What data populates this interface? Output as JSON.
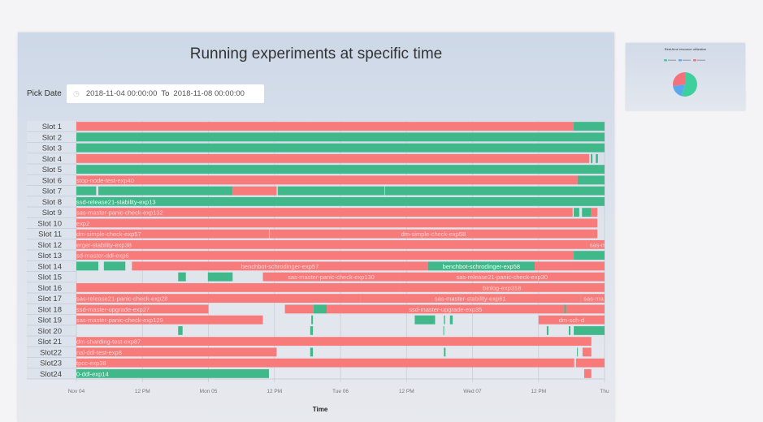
{
  "panel": {
    "title": "Running experiments at specific time",
    "pick_date_label": "Pick Date",
    "date_from": "2018-11-04 00:00:00",
    "date_to_label": "To",
    "date_to": "2018-11-08 00:00:00",
    "clock_icon": "clock-icon"
  },
  "thumbnail": {
    "title": "Real-time resource utilization",
    "slices": [
      {
        "value": 55,
        "color": "#3dcf9e"
      },
      {
        "value": 18,
        "color": "#5aa9f0"
      },
      {
        "value": 27,
        "color": "#f4707a"
      }
    ]
  },
  "chart_data": {
    "type": "gantt",
    "title": "Running experiments at specific time",
    "xlabel": "Time",
    "xlim": [
      "2018-11-04 00:00",
      "2018-11-08 00:00"
    ],
    "x_ticks": [
      {
        "t": "2018-11-04 00:00",
        "label": "Nov 04"
      },
      {
        "t": "2018-11-04 12:00",
        "label": "12 PM"
      },
      {
        "t": "2018-11-05 00:00",
        "label": "Mon 05"
      },
      {
        "t": "2018-11-05 12:00",
        "label": "12 PM"
      },
      {
        "t": "2018-11-06 00:00",
        "label": "Tue 06"
      },
      {
        "t": "2018-11-06 12:00",
        "label": "12 PM"
      },
      {
        "t": "2018-11-07 00:00",
        "label": "Wed 07"
      },
      {
        "t": "2018-11-07 12:00",
        "label": "12 PM"
      },
      {
        "t": "2018-11-08 00:00",
        "label": "Thu"
      }
    ],
    "colors": {
      "red": "#f77b7b",
      "green": "#40b88a"
    },
    "slots": [
      {
        "name": "Slot 1",
        "segments": [
          [
            "2018-11-03 20:00",
            "2018-11-07 18:24",
            "red",
            ""
          ],
          [
            "2018-11-07 18:24",
            "2018-11-08 04:00",
            "green",
            ""
          ]
        ]
      },
      {
        "name": "Slot 2",
        "segments": [
          [
            "2018-11-03 20:00",
            "2018-11-08 04:00",
            "green",
            ""
          ]
        ]
      },
      {
        "name": "Slot 3",
        "segments": [
          [
            "2018-11-03 20:00",
            "2018-11-08 04:00",
            "green",
            ""
          ]
        ]
      },
      {
        "name": "Slot 4",
        "segments": [
          [
            "2018-11-03 20:00",
            "2018-11-07 21:12",
            "red",
            ""
          ],
          [
            "2018-11-07 21:30",
            "2018-11-07 21:48",
            "green",
            ""
          ],
          [
            "2018-11-07 22:24",
            "2018-11-07 22:48",
            "green",
            ""
          ]
        ]
      },
      {
        "name": "Slot 5",
        "segments": [
          [
            "2018-11-03 20:00",
            "2018-11-08 04:00",
            "green",
            ""
          ]
        ]
      },
      {
        "name": "Slot 6",
        "segments": [
          [
            "2018-11-03 20:00",
            "2018-11-07 19:06",
            "red",
            "stop-node-test-exp40"
          ],
          [
            "2018-11-07 19:06",
            "2018-11-08 04:00",
            "green",
            ""
          ]
        ]
      },
      {
        "name": "Slot 7",
        "segments": [
          [
            "2018-11-03 20:00",
            "2018-11-04 03:36",
            "green",
            ""
          ],
          [
            "2018-11-04 04:00",
            "2018-11-05 04:24",
            "green",
            ""
          ],
          [
            "2018-11-05 04:24",
            "2018-11-05 12:24",
            "red",
            ""
          ],
          [
            "2018-11-05 12:36",
            "2018-11-06 08:00",
            "green",
            ""
          ],
          [
            "2018-11-06 08:06",
            "2018-11-08 04:00",
            "green",
            ""
          ]
        ]
      },
      {
        "name": "Slot 8",
        "segments": [
          [
            "2018-11-03 20:00",
            "2018-11-08 04:00",
            "green",
            "ssd-release21-stability-exp13"
          ]
        ]
      },
      {
        "name": "Slot 9",
        "segments": [
          [
            "2018-11-03 20:00",
            "2018-11-07 18:12",
            "red",
            "sas-master-panic-check-exp132"
          ],
          [
            "2018-11-07 18:24",
            "2018-11-07 19:24",
            "green",
            ""
          ],
          [
            "2018-11-07 19:54",
            "2018-11-07 21:36",
            "green",
            ""
          ],
          [
            "2018-11-07 21:36",
            "2018-11-07 22:42",
            "red",
            ""
          ]
        ]
      },
      {
        "name": "Slot 10",
        "segments": [
          [
            "2018-11-03 20:00",
            "2018-11-07 22:42",
            "red",
            "exp2"
          ]
        ]
      },
      {
        "name": "Slot 11",
        "segments": [
          [
            "2018-11-03 20:00",
            "2018-11-05 11:00",
            "red",
            "dm-simple-check-exp57"
          ],
          [
            "2018-11-05 11:06",
            "2018-11-07 22:42",
            "red",
            "dm-simple-check-exp58"
          ]
        ]
      },
      {
        "name": "Slot 12",
        "segments": [
          [
            "2018-11-03 20:00",
            "2018-11-07 20:42",
            "red",
            "erger-stability-exp38"
          ],
          [
            "2018-11-07 20:42",
            "2018-11-08 04:00",
            "red",
            "sas-m"
          ]
        ]
      },
      {
        "name": "Slot 13",
        "segments": [
          [
            "2018-11-03 20:00",
            "2018-11-07 18:24",
            "red",
            "sd-master-ddl-exp6"
          ],
          [
            "2018-11-07 18:24",
            "2018-11-08 04:00",
            "green",
            ""
          ]
        ]
      },
      {
        "name": "Slot 14",
        "segments": [
          [
            "2018-11-03 20:00",
            "2018-11-04 04:00",
            "green",
            ""
          ],
          [
            "2018-11-04 05:00",
            "2018-11-04 08:54",
            "green",
            ""
          ],
          [
            "2018-11-04 10:06",
            "2018-11-06 15:54",
            "red",
            "benchbot-schrodinger-exp57"
          ],
          [
            "2018-11-06 15:54",
            "2018-11-07 11:18",
            "green",
            "benchbot-schrodinger-exp58"
          ],
          [
            "2018-11-07 11:18",
            "2018-11-08 04:00",
            "red",
            ""
          ]
        ]
      },
      {
        "name": "Slot 15",
        "segments": [
          [
            "2018-11-04 18:30",
            "2018-11-04 19:54",
            "green",
            ""
          ],
          [
            "2018-11-04 23:54",
            "2018-11-05 04:24",
            "green",
            ""
          ],
          [
            "2018-11-05 09:54",
            "2018-11-06 10:42",
            "red",
            "sas-master-panic-check-exp130"
          ],
          [
            "2018-11-06 10:42",
            "2018-11-08 04:00",
            "red",
            "sas-release21-panic-check-exp30"
          ]
        ]
      },
      {
        "name": "Slot 16",
        "segments": [
          [
            "2018-11-03 20:00",
            "2018-11-06 10:42",
            "red",
            ""
          ],
          [
            "2018-11-06 10:42",
            "2018-11-08 04:00",
            "red",
            "binlog-exp318"
          ]
        ]
      },
      {
        "name": "Slot 17",
        "segments": [
          [
            "2018-11-03 20:00",
            "2018-11-06 03:36",
            "red",
            "sas-release21-panic-check-exp28"
          ],
          [
            "2018-11-06 03:36",
            "2018-11-07 19:36",
            "red",
            "sas-master-stability-exp61"
          ],
          [
            "2018-11-07 19:36",
            "2018-11-08 04:00",
            "red",
            "sas-ma"
          ]
        ]
      },
      {
        "name": "Slot 18",
        "segments": [
          [
            "2018-11-03 20:00",
            "2018-11-05 00:00",
            "red",
            "ssd-master-upgrade-exp27"
          ],
          [
            "2018-11-05 13:54",
            "2018-11-05 19:06",
            "red",
            ""
          ],
          [
            "2018-11-05 19:06",
            "2018-11-05 21:30",
            "green",
            ""
          ],
          [
            "2018-11-05 21:30",
            "2018-11-07 16:42",
            "red",
            "ssd-master-upgrade-exp35"
          ],
          [
            "2018-11-07 16:42",
            "2018-11-07 17:00",
            "green",
            ""
          ],
          [
            "2018-11-07 17:00",
            "2018-11-08 04:00",
            "red",
            ""
          ]
        ]
      },
      {
        "name": "Slot 19",
        "segments": [
          [
            "2018-11-03 20:00",
            "2018-11-05 09:54",
            "red",
            "sas-master-panic-check-exp129"
          ],
          [
            "2018-11-05 18:42",
            "2018-11-05 19:00",
            "green",
            ""
          ],
          [
            "2018-11-06 13:30",
            "2018-11-06 17:12",
            "green",
            ""
          ],
          [
            "2018-11-06 18:48",
            "2018-11-06 19:00",
            "green",
            ""
          ],
          [
            "2018-11-06 19:54",
            "2018-11-06 20:24",
            "green",
            ""
          ],
          [
            "2018-11-07 12:00",
            "2018-11-08 04:00",
            "red",
            "dm-sch-d"
          ]
        ]
      },
      {
        "name": "Slot 20",
        "segments": [
          [
            "2018-11-04 18:30",
            "2018-11-04 19:18",
            "green",
            ""
          ],
          [
            "2018-11-05 18:30",
            "2018-11-05 19:00",
            "green",
            ""
          ],
          [
            "2018-11-06 18:42",
            "2018-11-06 18:48",
            "green",
            ""
          ],
          [
            "2018-11-07 13:30",
            "2018-11-07 13:48",
            "green",
            ""
          ],
          [
            "2018-11-07 17:30",
            "2018-11-07 17:48",
            "green",
            ""
          ],
          [
            "2018-11-07 18:24",
            "2018-11-08 04:00",
            "green",
            ""
          ]
        ]
      },
      {
        "name": "Slot 21",
        "segments": [
          [
            "2018-11-03 20:00",
            "2018-11-07 21:36",
            "red",
            "dm-sharding-test-exp87"
          ]
        ]
      },
      {
        "name": "Slot22",
        "segments": [
          [
            "2018-11-03 20:00",
            "2018-11-05 12:24",
            "red",
            "nal-ddl-test-exp8"
          ],
          [
            "2018-11-05 18:30",
            "2018-11-05 19:00",
            "green",
            ""
          ],
          [
            "2018-11-06 18:48",
            "2018-11-06 19:06",
            "green",
            ""
          ],
          [
            "2018-11-07 19:00",
            "2018-11-07 19:06",
            "green",
            ""
          ],
          [
            "2018-11-07 20:00",
            "2018-11-07 21:36",
            "red",
            ""
          ]
        ]
      },
      {
        "name": "Slot23",
        "segments": [
          [
            "2018-11-03 20:00",
            "2018-11-07 18:30",
            "red",
            "tpcc-exp38"
          ],
          [
            "2018-11-07 18:48",
            "2018-11-08 04:00",
            "red",
            ""
          ]
        ]
      },
      {
        "name": "Slot24",
        "segments": [
          [
            "2018-11-03 20:00",
            "2018-11-05 11:00",
            "green",
            "0-ddl-exp14"
          ],
          [
            "2018-11-07 20:18",
            "2018-11-07 21:36",
            "red",
            ""
          ]
        ]
      }
    ]
  }
}
